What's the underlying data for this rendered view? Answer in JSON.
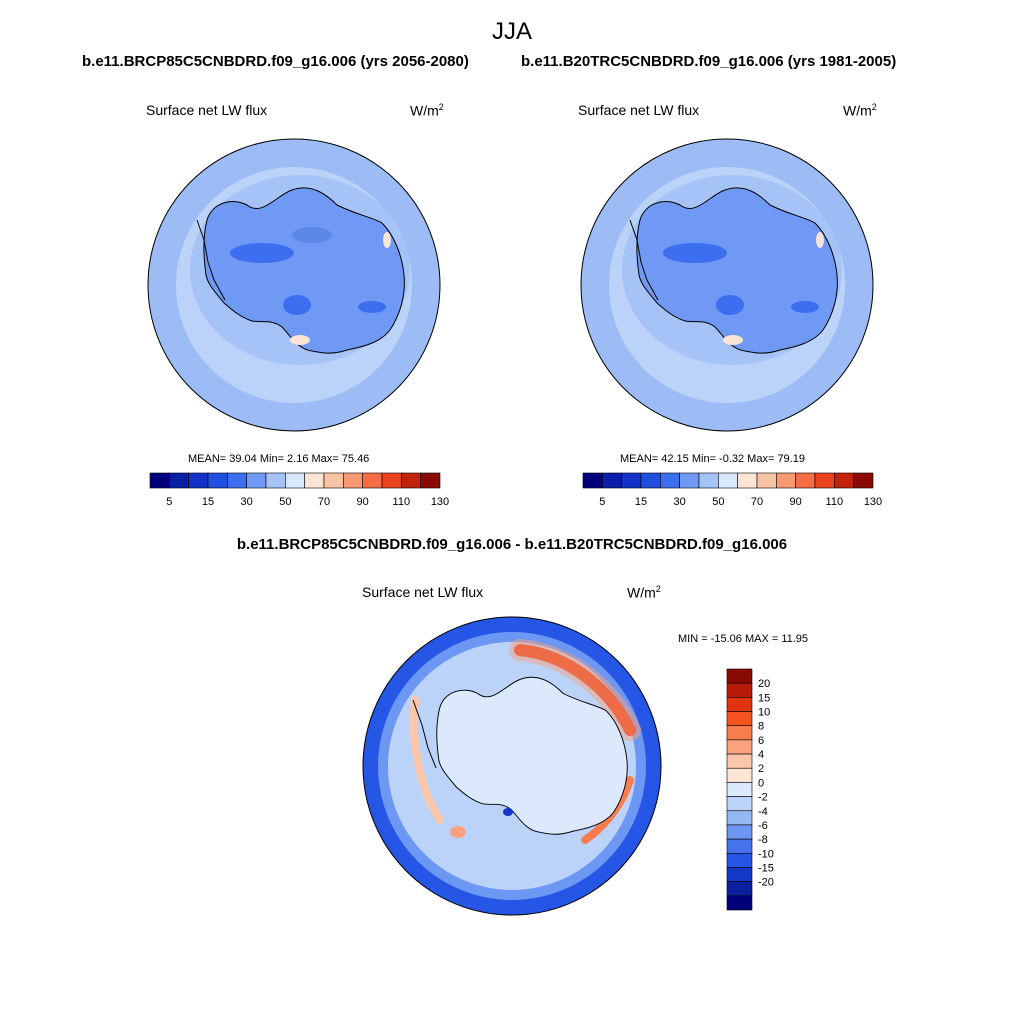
{
  "figure": {
    "title": "JJA",
    "colors": {
      "level_fills": [
        "#01007c",
        "#0a1fa8",
        "#1232c8",
        "#1f4ee0",
        "#3c6ef0",
        "#6f99f4",
        "#a6c3f7",
        "#d9e8fc",
        "#fce4d4",
        "#f9c3a6",
        "#f79a74",
        "#f46d45",
        "#e9431f",
        "#c2210c",
        "#8a0a04"
      ],
      "ice_sheet": "#5d87e6",
      "ocean_far": "#9dbcf5",
      "ocean_near": "#bcd3f9",
      "coastline": "#000000"
    }
  },
  "panels": [
    {
      "case": "b.e11.BRCP85C5CNBDRD.f09_g16.006 (yrs 2056-2080)",
      "variable": "Surface net LW flux",
      "units_base": "W/m",
      "units_exp": "2",
      "stats": "MEAN=  39.04  Min=   2.16  Max=  75.46",
      "colorbar_labels": [
        "5",
        "15",
        "30",
        "50",
        "70",
        "90",
        "110",
        "130"
      ]
    },
    {
      "case": "b.e11.B20TRC5CNBDRD.f09_g16.006 (yrs 1981-2005)",
      "variable": "Surface net LW flux",
      "units_base": "W/m",
      "units_exp": "2",
      "stats": "MEAN=  42.15  Min=  -0.32  Max=  79.19",
      "colorbar_labels": [
        "5",
        "15",
        "30",
        "50",
        "70",
        "90",
        "110",
        "130"
      ]
    }
  ],
  "difference": {
    "case": "b.e11.BRCP85C5CNBDRD.f09_g16.006 - b.e11.B20TRC5CNBDRD.f09_g16.006",
    "variable": "Surface net LW flux",
    "units_base": "W/m",
    "units_exp": "2",
    "stats": "MIN = -15.06 MAX =  11.95",
    "colorbar_labels": [
      "20",
      "15",
      "10",
      "8",
      "6",
      "4",
      "2",
      "0",
      "-2",
      "-4",
      "-6",
      "-8",
      "-10",
      "-15",
      "-20"
    ],
    "colorbar_colors": [
      "#8a0a04",
      "#b81c08",
      "#e33411",
      "#f5541f",
      "#f77d4e",
      "#f9a27d",
      "#fbc6a9",
      "#fde6d6",
      "#dce9fc",
      "#bcd3f9",
      "#96b8f5",
      "#6c97f2",
      "#4573ee",
      "#2556e6",
      "#1438c8",
      "#0a1f9f",
      "#01007c"
    ]
  }
}
